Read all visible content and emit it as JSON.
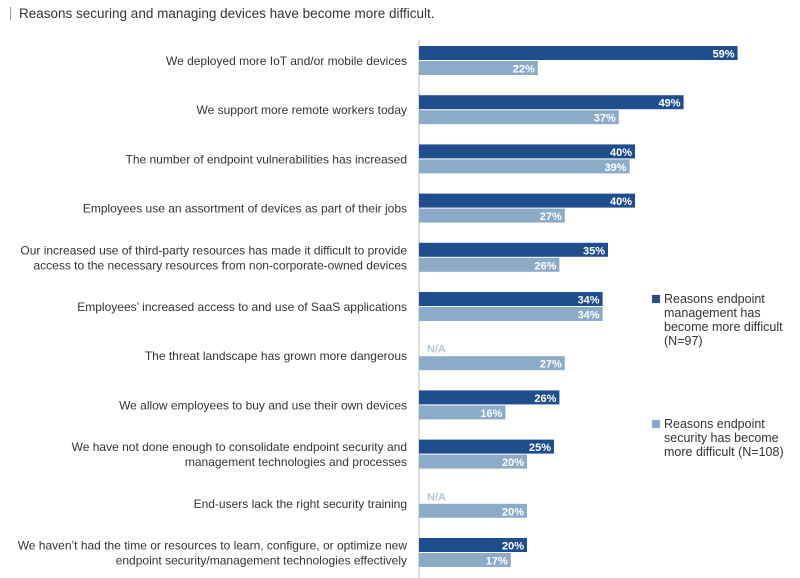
{
  "title": "Reasons securing and managing devices have become more difficult.",
  "colors": {
    "management": "#1f4e8c",
    "security": "#8cabc8",
    "na": "#b3c6da"
  },
  "legend": [
    {
      "label": "Reasons endpoint management has become more difficult (N=97)",
      "color": "#1f4e8c"
    },
    {
      "label": "Reasons endpoint security has become more difficult (N=108)",
      "color": "#8cabc8"
    }
  ],
  "chart_data": {
    "type": "bar",
    "orientation": "horizontal",
    "categories": [
      [
        "We deployed more IoT and/or mobile devices"
      ],
      [
        "We support more remote workers today"
      ],
      [
        "The number of endpoint vulnerabilities has increased"
      ],
      [
        "Employees use an assortment of devices as part of their jobs"
      ],
      [
        "Our increased use of third-party resources has made it difficult to provide",
        "access to the necessary resources from non-corporate-owned devices"
      ],
      [
        "Employees’ increased access to and use of SaaS applications"
      ],
      [
        "The threat landscape has grown more dangerous"
      ],
      [
        "We allow employees to buy and use their own devices"
      ],
      [
        "We have not done enough to consolidate endpoint security and",
        "management technologies and processes"
      ],
      [
        "End-users lack the right security training"
      ],
      [
        "We haven’t had the time or resources to learn, configure, or optimize new",
        "endpoint security/management technologies effectively"
      ]
    ],
    "series": [
      {
        "name": "Reasons endpoint management has become more difficult (N=97)",
        "values": [
          59,
          49,
          40,
          40,
          35,
          34,
          null,
          26,
          25,
          null,
          20
        ],
        "labels": [
          "59%",
          "49%",
          "40%",
          "40%",
          "35%",
          "34%",
          "N/A",
          "26%",
          "25%",
          "N/A",
          "20%"
        ]
      },
      {
        "name": "Reasons endpoint security has become more difficult (N=108)",
        "values": [
          22,
          37,
          39,
          27,
          26,
          34,
          27,
          16,
          20,
          20,
          17
        ],
        "labels": [
          "22%",
          "37%",
          "39%",
          "27%",
          "26%",
          "34%",
          "27%",
          "16%",
          "20%",
          "20%",
          "17%"
        ]
      }
    ],
    "xlim": [
      0,
      100
    ],
    "grid": false,
    "legend_position": "right"
  }
}
